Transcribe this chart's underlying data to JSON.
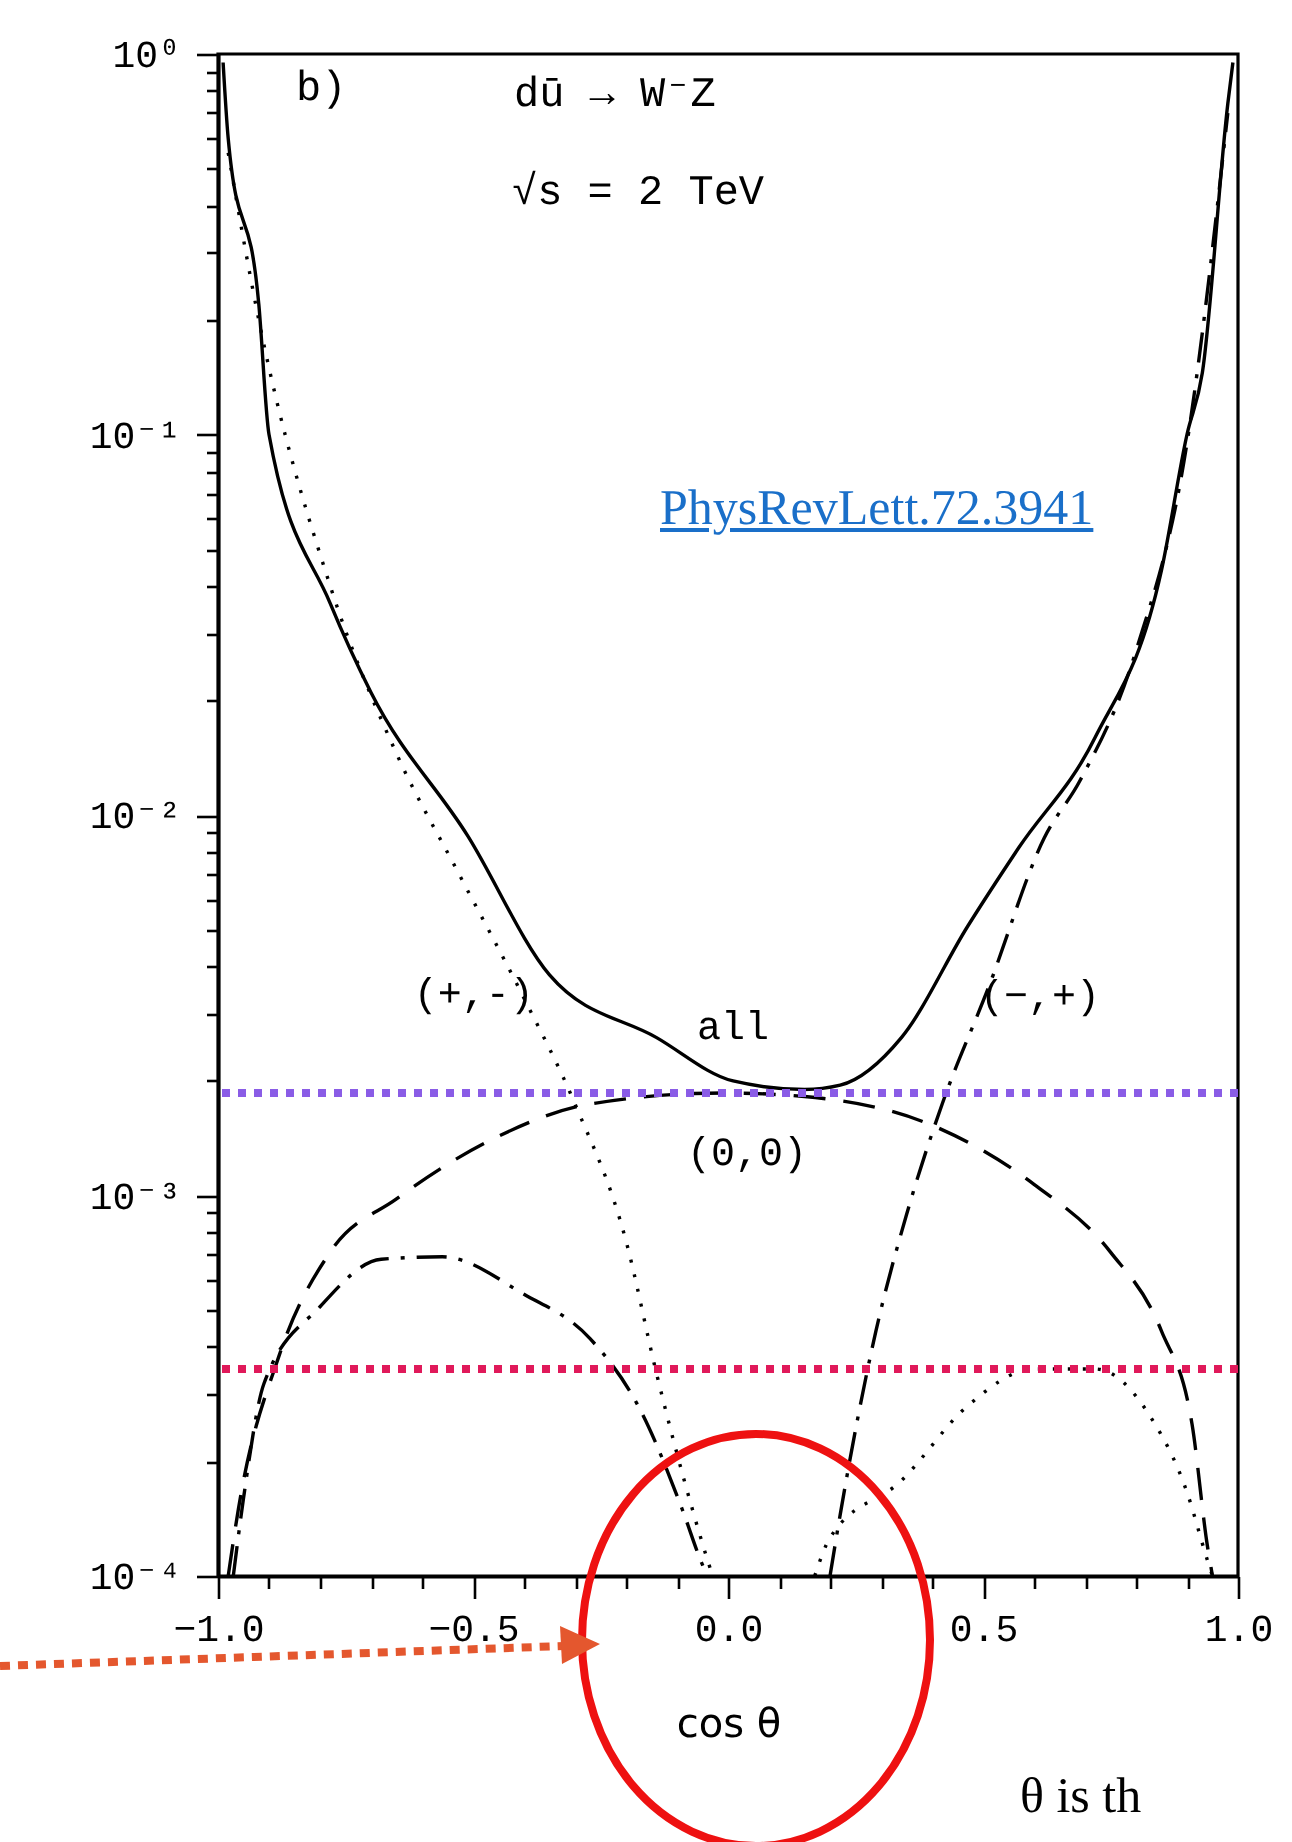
{
  "chart_data": {
    "type": "line",
    "xlabel": "cos θ",
    "annotations": [
      "b)",
      "dū → W⁻Z",
      "√s = 2 TeV",
      " PhysRevLett.72.3941",
      "θ is th"
    ],
    "log": "y",
    "xlim": [
      -1,
      1
    ],
    "xticks": [
      {
        "value": -1,
        "label": "−1.0"
      },
      {
        "value": -0.9,
        "label": null
      },
      {
        "value": -0.8,
        "label": null
      },
      {
        "value": -0.7,
        "label": null
      },
      {
        "value": -0.6,
        "label": null
      },
      {
        "value": -0.5,
        "label": "−0.5"
      },
      {
        "value": -0.4,
        "label": null
      },
      {
        "value": -0.3,
        "label": null
      },
      {
        "value": -0.2,
        "label": null
      },
      {
        "value": -0.1,
        "label": null
      },
      {
        "value": 0,
        "label": "0.0"
      },
      {
        "value": 0.1,
        "label": null
      },
      {
        "value": 0.2,
        "label": null
      },
      {
        "value": 0.3,
        "label": null
      },
      {
        "value": 0.4,
        "label": null
      },
      {
        "value": 0.5,
        "label": "0.5"
      },
      {
        "value": 0.6,
        "label": null
      },
      {
        "value": 0.7,
        "label": null
      },
      {
        "value": 0.8,
        "label": null
      },
      {
        "value": 0.9,
        "label": null
      },
      {
        "value": 1,
        "label": "1.0"
      }
    ],
    "ylim": [
      0.0001,
      1
    ],
    "yticks": [
      {
        "value": 0.0001,
        "label": "10⁻⁴"
      },
      {
        "value": 0.0002,
        "label": null
      },
      {
        "value": 0.0003,
        "label": null
      },
      {
        "value": 0.0004,
        "label": null
      },
      {
        "value": 0.0005,
        "label": null
      },
      {
        "value": 0.0006,
        "label": null
      },
      {
        "value": 0.0007,
        "label": null
      },
      {
        "value": 0.0008,
        "label": null
      },
      {
        "value": 0.0009,
        "label": null
      },
      {
        "value": 0.001,
        "label": "10⁻³"
      },
      {
        "value": 0.002,
        "label": null
      },
      {
        "value": 0.003,
        "label": null
      },
      {
        "value": 0.004,
        "label": null
      },
      {
        "value": 0.005,
        "label": null
      },
      {
        "value": 0.006,
        "label": null
      },
      {
        "value": 0.007,
        "label": null
      },
      {
        "value": 0.008,
        "label": null
      },
      {
        "value": 0.009,
        "label": null
      },
      {
        "value": 0.01,
        "label": "10⁻²"
      },
      {
        "value": 0.02,
        "label": null
      },
      {
        "value": 0.03,
        "label": null
      },
      {
        "value": 0.04,
        "label": null
      },
      {
        "value": 0.05,
        "label": null
      },
      {
        "value": 0.06,
        "label": null
      },
      {
        "value": 0.07,
        "label": null
      },
      {
        "value": 0.08,
        "label": null
      },
      {
        "value": 0.09,
        "label": null
      },
      {
        "value": 0.1,
        "label": "10⁻¹"
      },
      {
        "value": 0.2,
        "label": null
      },
      {
        "value": 0.3,
        "label": null
      },
      {
        "value": 0.4,
        "label": null
      },
      {
        "value": 0.5,
        "label": null
      },
      {
        "value": 0.6,
        "label": null
      },
      {
        "value": 0.7,
        "label": null
      },
      {
        "value": 0.8,
        "label": null
      },
      {
        "value": 0.9,
        "label": null
      },
      {
        "value": 1,
        "label": "10⁰"
      }
    ],
    "series": [
      {
        "name": "all",
        "color": "#000000",
        "line_style": "solid",
        "x": [
          -0.99,
          -0.98,
          -0.92,
          -0.9,
          -0.78,
          -0.7,
          -0.51,
          -0.35,
          -0.14,
          0.01,
          0.15,
          0.22,
          0.34,
          0.47,
          0.57,
          0.72,
          0.85,
          0.9,
          0.93,
          0.98,
          0.99
        ],
        "values": [
          0.95,
          0.6,
          0.22,
          0.1,
          0.036,
          0.021,
          0.0088,
          0.0038,
          0.0026,
          0.002,
          0.0019,
          0.00195,
          0.0026,
          0.0051,
          0.0082,
          0.016,
          0.044,
          0.1,
          0.145,
          0.74,
          0.95
        ]
      },
      {
        "name": "(0,0)",
        "color": "#000000",
        "line_style": "dashed",
        "x": [
          -0.98,
          -0.96,
          -0.88,
          -0.78,
          -0.65,
          -0.46,
          -0.27,
          -0.01,
          0.15,
          0.41,
          0.6,
          0.75,
          0.85,
          0.91,
          0.94,
          0.95
        ],
        "values": [
          0.0001,
          0.00015,
          0.00038,
          0.00071,
          0.00098,
          0.00141,
          0.00174,
          0.00186,
          0.00182,
          0.00151,
          0.00107,
          0.00071,
          0.00044,
          0.00025,
          0.00012,
          0.0001
        ]
      },
      {
        "name": "(+,-)",
        "color": "#000000",
        "line_style": "dotted",
        "x": [
          -0.98,
          -0.92,
          -0.78,
          -0.65,
          -0.53,
          -0.4,
          -0.3,
          -0.2,
          -0.14,
          -0.07,
          -0.04,
          -0.03,
          0.07,
          0.17,
          0.2,
          0.34,
          0.47,
          0.6,
          0.72,
          0.83,
          0.9,
          0.94,
          0.95
        ],
        "values": [
          0.55,
          0.2,
          0.04,
          0.0145,
          0.0071,
          0.0033,
          0.00174,
          0.00076,
          0.00034,
          0.00015,
          0.00011,
          0.0001,
          null,
          0.0001,
          0.000126,
          0.000178,
          0.00028,
          0.00035,
          0.00035,
          0.00026,
          0.000166,
          0.00011,
          0.0001
        ]
      },
      {
        "name": "(−,+)",
        "color": "#000000",
        "line_style": "dashdot",
        "x": [
          -0.97,
          -0.95,
          -0.91,
          -0.8,
          -0.68,
          -0.56,
          -0.4,
          -0.27,
          -0.17,
          -0.09,
          -0.05,
          -0.04,
          0.1,
          0.2,
          0.22,
          0.29,
          0.35,
          0.42,
          0.51,
          0.62,
          0.69,
          0.8,
          0.9,
          0.98
        ],
        "values": [
          0.0001,
          0.00016,
          0.00032,
          0.00051,
          0.00068,
          0.00069,
          0.00055,
          0.00042,
          0.00027,
          0.00015,
          0.000107,
          0.0001,
          null,
          0.0001,
          0.000145,
          0.00044,
          0.00089,
          0.00174,
          0.0035,
          0.0087,
          0.0123,
          0.027,
          0.095,
          0.7
        ]
      }
    ],
    "ref_lines": [
      {
        "axis": "y",
        "value": 0.00186,
        "color": "#8a5ce6",
        "line_style": "dotted"
      },
      {
        "axis": "y",
        "value": 0.00035,
        "color": "#e0195a",
        "line_style": "dotted"
      }
    ]
  }
}
